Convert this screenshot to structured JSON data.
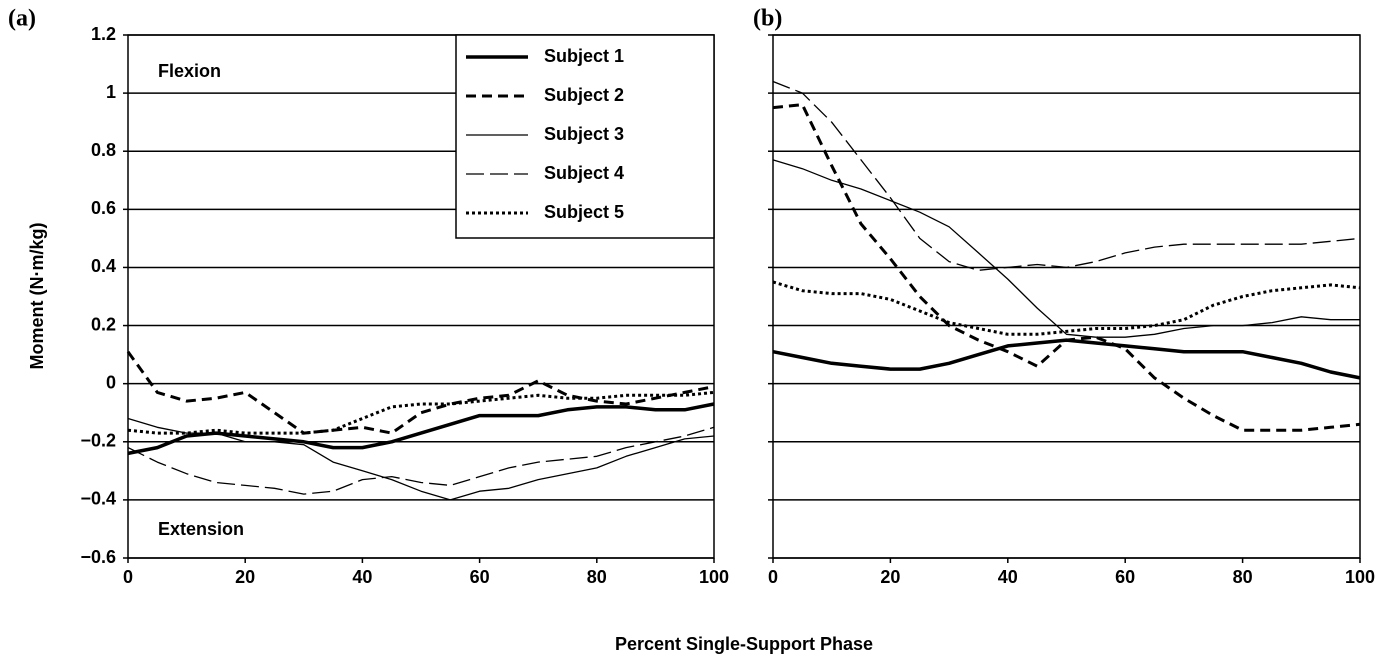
{
  "xlabel": "Percent Single-Support Phase",
  "ylabel": "Moment (N·m/kg)",
  "chart_data": [
    {
      "type": "line",
      "label": "(a)",
      "annotations": [
        "Flexion",
        "Extension"
      ],
      "legend": "upper right",
      "grid": true,
      "y_tick_labels": true,
      "x": [
        0,
        5,
        10,
        15,
        20,
        25,
        30,
        35,
        40,
        45,
        50,
        55,
        60,
        65,
        70,
        75,
        80,
        85,
        90,
        95,
        100
      ],
      "xlim": [
        0,
        100
      ],
      "xticks": [
        0,
        20,
        40,
        60,
        80,
        100
      ],
      "ylim": [
        -0.6,
        1.2
      ],
      "yticks": [
        {
          "value": -0.6,
          "label": "−0.6"
        },
        {
          "value": -0.4,
          "label": "−0.4"
        },
        {
          "value": -0.2,
          "label": "−0.2"
        },
        0,
        0.2,
        0.4,
        0.6,
        0.8,
        1,
        1.2
      ],
      "series": [
        {
          "name": "Subject 1",
          "color": "#000000",
          "width": 3.5,
          "dash": "none",
          "values": [
            -0.24,
            -0.22,
            -0.18,
            -0.17,
            -0.18,
            -0.19,
            -0.2,
            -0.22,
            -0.22,
            -0.2,
            -0.17,
            -0.14,
            -0.11,
            -0.11,
            -0.11,
            -0.09,
            -0.08,
            -0.08,
            -0.09,
            -0.09,
            -0.07
          ]
        },
        {
          "name": "Subject 2",
          "color": "#000000",
          "width": 3,
          "dash": "10 6",
          "values": [
            0.11,
            -0.03,
            -0.06,
            -0.05,
            -0.03,
            -0.1,
            -0.17,
            -0.16,
            -0.15,
            -0.17,
            -0.1,
            -0.07,
            -0.05,
            -0.04,
            0.01,
            -0.04,
            -0.06,
            -0.07,
            -0.05,
            -0.03,
            -0.01
          ]
        },
        {
          "name": "Subject 3",
          "color": "#000000",
          "width": 1.3,
          "dash": "none",
          "values": [
            -0.12,
            -0.15,
            -0.17,
            -0.17,
            -0.2,
            -0.2,
            -0.21,
            -0.27,
            -0.3,
            -0.33,
            -0.37,
            -0.4,
            -0.37,
            -0.36,
            -0.33,
            -0.31,
            -0.29,
            -0.25,
            -0.22,
            -0.19,
            -0.18
          ]
        },
        {
          "name": "Subject 4",
          "color": "#000000",
          "width": 1.3,
          "dash": "18 6",
          "values": [
            -0.22,
            -0.27,
            -0.31,
            -0.34,
            -0.35,
            -0.36,
            -0.38,
            -0.37,
            -0.33,
            -0.32,
            -0.34,
            -0.35,
            -0.32,
            -0.29,
            -0.27,
            -0.26,
            -0.25,
            -0.22,
            -0.2,
            -0.18,
            -0.15
          ]
        },
        {
          "name": "Subject 5",
          "color": "#000000",
          "width": 3,
          "dash": "3 3",
          "values": [
            -0.16,
            -0.17,
            -0.17,
            -0.16,
            -0.17,
            -0.17,
            -0.17,
            -0.16,
            -0.12,
            -0.08,
            -0.07,
            -0.07,
            -0.06,
            -0.05,
            -0.04,
            -0.05,
            -0.05,
            -0.04,
            -0.04,
            -0.04,
            -0.03
          ]
        }
      ]
    },
    {
      "type": "line",
      "label": "(b)",
      "grid": true,
      "y_tick_labels": false,
      "x": [
        0,
        5,
        10,
        15,
        20,
        25,
        30,
        35,
        40,
        45,
        50,
        55,
        60,
        65,
        70,
        75,
        80,
        85,
        90,
        95,
        100
      ],
      "xlim": [
        0,
        100
      ],
      "xticks": [
        0,
        20,
        40,
        60,
        80,
        100
      ],
      "ylim": [
        -0.6,
        1.2
      ],
      "yticks": [
        -0.6,
        -0.4,
        -0.2,
        0,
        0.2,
        0.4,
        0.6,
        0.8,
        1,
        1.2
      ],
      "series": [
        {
          "name": "Subject 1",
          "color": "#000000",
          "width": 3.5,
          "dash": "none",
          "values": [
            0.11,
            0.09,
            0.07,
            0.06,
            0.05,
            0.05,
            0.07,
            0.1,
            0.13,
            0.14,
            0.15,
            0.14,
            0.13,
            0.12,
            0.11,
            0.11,
            0.11,
            0.09,
            0.07,
            0.04,
            0.02
          ]
        },
        {
          "name": "Subject 2",
          "color": "#000000",
          "width": 3,
          "dash": "10 6",
          "values": [
            0.95,
            0.96,
            0.75,
            0.55,
            0.43,
            0.3,
            0.2,
            0.15,
            0.11,
            0.06,
            0.15,
            0.16,
            0.12,
            0.02,
            -0.05,
            -0.11,
            -0.16,
            -0.16,
            -0.16,
            -0.15,
            -0.14
          ]
        },
        {
          "name": "Subject 3",
          "color": "#000000",
          "width": 1.3,
          "dash": "none",
          "values": [
            0.77,
            0.74,
            0.7,
            0.67,
            0.63,
            0.59,
            0.54,
            0.45,
            0.36,
            0.26,
            0.17,
            0.16,
            0.16,
            0.17,
            0.19,
            0.2,
            0.2,
            0.21,
            0.23,
            0.22,
            0.22
          ]
        },
        {
          "name": "Subject 4",
          "color": "#000000",
          "width": 1.3,
          "dash": "18 6",
          "values": [
            1.04,
            1.0,
            0.9,
            0.77,
            0.64,
            0.5,
            0.42,
            0.39,
            0.4,
            0.41,
            0.4,
            0.42,
            0.45,
            0.47,
            0.48,
            0.48,
            0.48,
            0.48,
            0.48,
            0.49,
            0.5
          ]
        },
        {
          "name": "Subject 5",
          "color": "#000000",
          "width": 3,
          "dash": "3 3",
          "values": [
            0.35,
            0.32,
            0.31,
            0.31,
            0.29,
            0.25,
            0.21,
            0.19,
            0.17,
            0.17,
            0.18,
            0.19,
            0.19,
            0.2,
            0.22,
            0.27,
            0.3,
            0.32,
            0.33,
            0.34,
            0.33
          ]
        }
      ]
    }
  ]
}
